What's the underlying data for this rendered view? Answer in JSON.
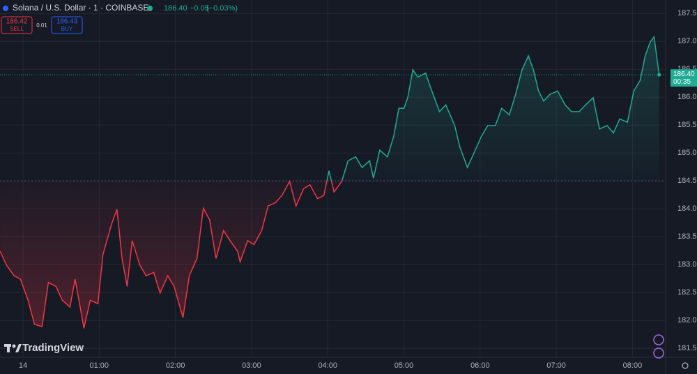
{
  "header": {
    "symbol": "Solana / U.S. Dollar · 1 · COINBASE",
    "price": "186.40",
    "change": "−0.05",
    "change_pct": "(−0.03%)",
    "sell_price": "186.42",
    "sell_label": "SELL",
    "spread": "0.01",
    "buy_price": "186.43",
    "buy_label": "BUY"
  },
  "logo": "TradingView",
  "chart_data": {
    "type": "line",
    "x": [
      -18,
      -13,
      -7,
      -2,
      4,
      9,
      15,
      20,
      26,
      31,
      37,
      41,
      45,
      48,
      53,
      59,
      63,
      70,
      74,
      78,
      82,
      86,
      92,
      97,
      103,
      108,
      114,
      119,
      126,
      131,
      137,
      142,
      147,
      152,
      158,
      163,
      169,
      171,
      177,
      182,
      188,
      193,
      199,
      204,
      210,
      215,
      221,
      226,
      232,
      237,
      241,
      245,
      251,
      256,
      262,
      267,
      273,
      276,
      281,
      287,
      292,
      296,
      300,
      303,
      307,
      311,
      317,
      322,
      328,
      333,
      340,
      344,
      350,
      355,
      361,
      366,
      372,
      377,
      383,
      388,
      393,
      398,
      402,
      406,
      410,
      415,
      421,
      427,
      432,
      438,
      443,
      449,
      454,
      460,
      465,
      470,
      476,
      481,
      486,
      490,
      494,
      497,
      501
    ],
    "values": [
      183.24,
      182.99,
      182.8,
      182.74,
      182.36,
      181.93,
      181.89,
      182.68,
      182.61,
      182.36,
      182.24,
      182.74,
      182.24,
      181.86,
      182.36,
      182.3,
      183.18,
      183.74,
      183.99,
      183.11,
      182.61,
      183.43,
      182.99,
      182.8,
      182.86,
      182.49,
      182.8,
      182.61,
      182.05,
      182.8,
      183.11,
      184.01,
      183.8,
      183.11,
      183.61,
      183.43,
      183.24,
      183.05,
      183.43,
      183.36,
      183.61,
      184.05,
      184.11,
      184.24,
      184.49,
      184.05,
      184.36,
      184.43,
      184.18,
      184.24,
      184.68,
      184.3,
      184.49,
      184.86,
      184.93,
      184.74,
      184.86,
      184.55,
      185.05,
      184.93,
      185.3,
      185.8,
      185.8,
      185.99,
      186.49,
      186.36,
      186.43,
      186.11,
      185.74,
      185.86,
      185.49,
      185.11,
      184.74,
      184.99,
      185.3,
      185.49,
      185.49,
      185.8,
      185.68,
      186.05,
      186.49,
      186.74,
      186.49,
      186.11,
      185.93,
      186.05,
      186.11,
      185.86,
      185.74,
      185.74,
      185.86,
      185.99,
      185.43,
      185.49,
      185.36,
      185.61,
      185.55,
      186.11,
      186.3,
      186.74,
      186.99,
      187.08,
      186.4
    ],
    "baseline": 184.5,
    "up_color": "#22ab94",
    "down_color": "#f23645",
    "last_price": {
      "value": 186.4,
      "label": "186.40"
    },
    "countdown": "00:35",
    "xlim": [
      -18.1,
      506.1
    ],
    "ylim": [
      181.34,
      187.74
    ],
    "xticks": [
      {
        "value": 0,
        "label": "14"
      },
      {
        "value": 60,
        "label": "01:00"
      },
      {
        "value": 120,
        "label": "02:00"
      },
      {
        "value": 180,
        "label": "03:00"
      },
      {
        "value": 240,
        "label": "04:00"
      },
      {
        "value": 300,
        "label": "05:00"
      },
      {
        "value": 360,
        "label": "06:00"
      },
      {
        "value": 420,
        "label": "07:00"
      },
      {
        "value": 480,
        "label": "08:00"
      }
    ],
    "yticks": [
      {
        "value": 181.5,
        "label": "181.50"
      },
      {
        "value": 182,
        "label": "182.00"
      },
      {
        "value": 182.5,
        "label": "182.50"
      },
      {
        "value": 183,
        "label": "183.00"
      },
      {
        "value": 183.5,
        "label": "183.50"
      },
      {
        "value": 184,
        "label": "184.00"
      },
      {
        "value": 184.5,
        "label": "184.50"
      },
      {
        "value": 185,
        "label": "185.00"
      },
      {
        "value": 185.5,
        "label": "185.50"
      },
      {
        "value": 186,
        "label": "186.00"
      },
      {
        "value": 186.5,
        "label": "186.50"
      },
      {
        "value": 187,
        "label": "187.00"
      },
      {
        "value": 187.5,
        "label": "187.50"
      }
    ],
    "grid": true
  }
}
